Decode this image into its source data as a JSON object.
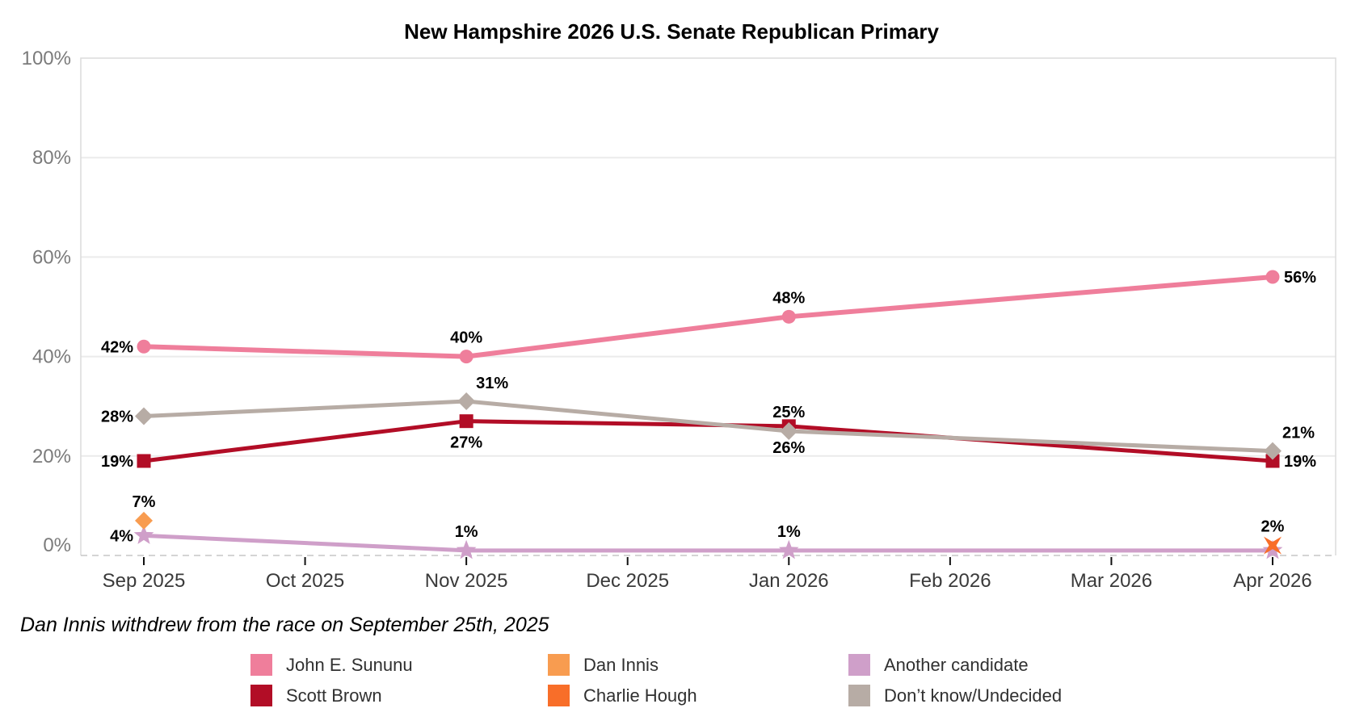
{
  "header": {
    "title": "New Hampshire 2026 U.S. Senate Republican Primary"
  },
  "note": {
    "text": "Dan Innis withdrew from the race on September 25th, 2025"
  },
  "chart_data": {
    "type": "line",
    "title": "New Hampshire 2026 U.S. Senate Republican Primary",
    "xlabel": "",
    "ylabel": "",
    "x_categories": [
      "Sep 2025",
      "Oct 2025",
      "Nov 2025",
      "Dec 2025",
      "Jan 2026",
      "Feb 2026",
      "Mar 2026",
      "Apr 2026"
    ],
    "y_axis": {
      "range": [
        0,
        100
      ],
      "ticks": [
        0,
        20,
        40,
        60,
        80,
        100
      ],
      "tick_labels": [
        "0%",
        "20%",
        "40%",
        "60%",
        "80%",
        "100%"
      ],
      "grid": true
    },
    "series": [
      {
        "name": "John E. Sununu",
        "color": "#ef7e9b",
        "marker": "circle",
        "line_width": 6,
        "points": [
          {
            "x": "Sep 2025",
            "value": 42,
            "label": "42%",
            "label_pos": "left"
          },
          {
            "x": "Nov 2025",
            "value": 40,
            "label": "40%",
            "label_pos": "above"
          },
          {
            "x": "Jan 2026",
            "value": 48,
            "label": "48%",
            "label_pos": "above"
          },
          {
            "x": "Apr 2026",
            "value": 56,
            "label": "56%",
            "label_pos": "right"
          }
        ]
      },
      {
        "name": "Scott Brown",
        "color": "#b20d26",
        "marker": "square",
        "line_width": 5,
        "points": [
          {
            "x": "Sep 2025",
            "value": 19,
            "label": "19%",
            "label_pos": "left"
          },
          {
            "x": "Nov 2025",
            "value": 27,
            "label": "27%",
            "label_pos": "below"
          },
          {
            "x": "Jan 2026",
            "value": 26,
            "label": "26%",
            "label_pos": "below"
          },
          {
            "x": "Apr 2026",
            "value": 19,
            "label": "19%",
            "label_pos": "right"
          }
        ]
      },
      {
        "name": "Dan Innis",
        "color": "#f89c50",
        "marker": "diamond",
        "line_width": 5,
        "points": [
          {
            "x": "Sep 2025",
            "value": 7,
            "label": "7%",
            "label_pos": "above"
          }
        ]
      },
      {
        "name": "Charlie Hough",
        "color": "#f86e29",
        "marker": "x",
        "line_width": 5,
        "points": [
          {
            "x": "Apr 2026",
            "value": 2,
            "label": "2%",
            "label_pos": "above"
          }
        ]
      },
      {
        "name": "Another candidate",
        "color": "#cf9fc9",
        "marker": "star",
        "line_width": 5,
        "points": [
          {
            "x": "Sep 2025",
            "value": 4,
            "label": "4%",
            "label_pos": "left"
          },
          {
            "x": "Nov 2025",
            "value": 1,
            "label": "1%",
            "label_pos": "above"
          },
          {
            "x": "Jan 2026",
            "value": 1,
            "label": "1%",
            "label_pos": "above"
          },
          {
            "x": "Apr 2026",
            "value": 1,
            "label": null,
            "label_pos": null
          }
        ]
      },
      {
        "name": "Don’t know/Undecided",
        "color": "#b7aca5",
        "marker": "diamond",
        "line_width": 5,
        "points": [
          {
            "x": "Sep 2025",
            "value": 28,
            "label": "28%",
            "label_pos": "left"
          },
          {
            "x": "Nov 2025",
            "value": 31,
            "label": "31%",
            "label_pos": "above-right"
          },
          {
            "x": "Jan 2026",
            "value": 25,
            "label": "25%",
            "label_pos": "above"
          },
          {
            "x": "Apr 2026",
            "value": 21,
            "label": "21%",
            "label_pos": "above-right"
          }
        ]
      }
    ],
    "draw_order": [
      "Scott Brown",
      "Don’t know/Undecided",
      "Another candidate",
      "John E. Sununu",
      "Dan Innis",
      "Charlie Hough"
    ],
    "legend": {
      "position": "bottom",
      "columns": [
        [
          "John E. Sununu",
          "Scott Brown"
        ],
        [
          "Dan Innis",
          "Charlie Hough"
        ],
        [
          "Another candidate",
          "Don’t know/Undecided"
        ]
      ]
    }
  }
}
